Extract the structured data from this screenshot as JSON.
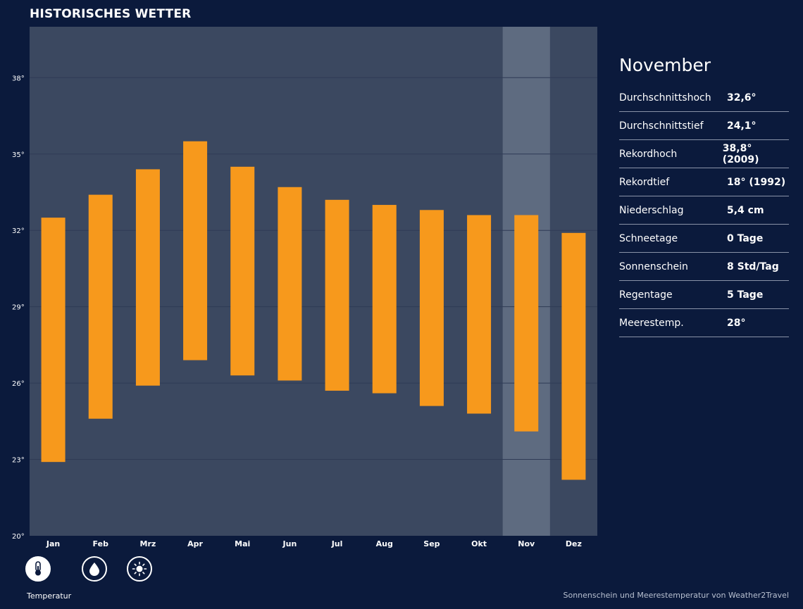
{
  "header": {
    "title": "HISTORISCHES WETTER"
  },
  "chart_data": {
    "type": "bar",
    "subtype": "floating-range",
    "categories": [
      "Jan",
      "Feb",
      "Mrz",
      "Apr",
      "Mai",
      "Jun",
      "Jul",
      "Aug",
      "Sep",
      "Okt",
      "Nov",
      "Dez"
    ],
    "series": [
      {
        "name": "Durchschnittshoch",
        "values": [
          32.5,
          33.4,
          34.4,
          35.5,
          34.5,
          33.7,
          33.2,
          33.0,
          32.8,
          32.6,
          32.6,
          31.9
        ]
      },
      {
        "name": "Durchschnittstief",
        "values": [
          22.9,
          24.6,
          25.9,
          26.9,
          26.3,
          26.1,
          25.7,
          25.6,
          25.1,
          24.8,
          24.1,
          22.2
        ]
      }
    ],
    "yticks": [
      "20°",
      "23°",
      "26°",
      "29°",
      "32°",
      "35°",
      "38°"
    ],
    "ytick_values": [
      20,
      23,
      26,
      29,
      32,
      35,
      38
    ],
    "ylim": [
      20,
      40
    ],
    "selected_category": "Nov",
    "grid": true,
    "title": "",
    "xlabel": "",
    "ylabel": ""
  },
  "detail": {
    "month": "November",
    "stats": [
      {
        "label": "Durchschnittshoch",
        "value": "32,6°"
      },
      {
        "label": "Durchschnittstief",
        "value": "24,1°"
      },
      {
        "label": "Rekordhoch",
        "value": "38,8° (2009)"
      },
      {
        "label": "Rekordtief",
        "value": "18° (1992)"
      },
      {
        "label": "Niederschlag",
        "value": "5,4 cm"
      },
      {
        "label": "Schneetage",
        "value": "0 Tage"
      },
      {
        "label": "Sonnenschein",
        "value": "8 Std/Tag"
      },
      {
        "label": "Regentage",
        "value": "5 Tage"
      },
      {
        "label": "Meerestemp.",
        "value": "28°"
      }
    ]
  },
  "modes": {
    "active_label": "Temperatur",
    "buttons": [
      {
        "icon": "thermometer-icon"
      },
      {
        "icon": "raindrop-icon"
      },
      {
        "icon": "sun-icon"
      }
    ]
  },
  "footer": {
    "credit": "Sonnenschein und Meerestemperatur von Weather2Travel"
  },
  "colors": {
    "background": "#0b1a3c",
    "plot": "#3b4860",
    "highlight": "#5e6b80",
    "bar": "#f7991c",
    "grid": "#2f3b55"
  }
}
